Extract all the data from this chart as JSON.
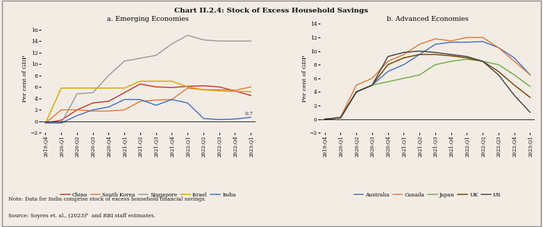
{
  "title": "Chart II.2.4: Stock of Excess Household Savings",
  "background_color": "#f2ece4",
  "note_line1": "Note: Data for India comprise stock of excess household financial savings.",
  "note_line2": "Source: Soyres et. al., (2023)ᵇ  and RBI staff estimates.",
  "panel_a": {
    "title": "a. Emerging Economies",
    "ylabel": "Per cent of GDP",
    "ylim": [
      -2,
      17
    ],
    "yticks": [
      -2,
      0,
      2,
      4,
      6,
      8,
      10,
      12,
      14,
      16
    ],
    "x_labels": [
      "2019:Q4",
      "2020:Q1",
      "2020:Q2",
      "2020:Q3",
      "2020:Q4",
      "2021:Q1",
      "2021:Q2",
      "2021:Q3",
      "2021:Q4",
      "2022:Q1",
      "2022:Q2",
      "2022:Q3",
      "2022:Q4",
      "2023:Q1"
    ],
    "annotation": "0.7",
    "series": {
      "China": {
        "color": "#c0392b",
        "values": [
          -0.3,
          0.2,
          2.0,
          3.2,
          3.5,
          5.0,
          6.5,
          6.0,
          5.9,
          6.1,
          6.2,
          6.0,
          5.3,
          4.5
        ]
      },
      "South Korea": {
        "color": "#e07b39",
        "values": [
          -0.3,
          2.0,
          2.0,
          1.8,
          1.8,
          2.0,
          3.5,
          3.7,
          3.8,
          5.8,
          5.5,
          5.5,
          5.4,
          6.0
        ]
      },
      "Singapore": {
        "color": "#999999",
        "values": [
          -0.3,
          -0.3,
          4.8,
          5.0,
          8.0,
          10.5,
          11.0,
          11.5,
          13.5,
          15.0,
          14.2,
          14.0,
          14.0,
          14.0
        ]
      },
      "Israel": {
        "color": "#d4a800",
        "values": [
          -0.3,
          5.8,
          5.8,
          5.8,
          5.8,
          5.8,
          7.0,
          7.0,
          7.0,
          6.0,
          5.5,
          5.3,
          5.2,
          5.2
        ]
      },
      "India": {
        "color": "#4472c4",
        "values": [
          -0.3,
          -0.3,
          1.0,
          2.0,
          2.5,
          3.8,
          3.8,
          2.8,
          3.8,
          3.2,
          0.5,
          0.3,
          0.4,
          0.7
        ]
      }
    },
    "legend_order": [
      "China",
      "South Korea",
      "Singapore",
      "Israel",
      "India"
    ]
  },
  "panel_b": {
    "title": "b. Advanced Economies",
    "ylabel": "Per cent of GDP",
    "ylim": [
      -2,
      14
    ],
    "yticks": [
      -2,
      0,
      2,
      4,
      6,
      8,
      10,
      12,
      14
    ],
    "x_labels": [
      "2019:Q4",
      "2020:Q1",
      "2020:Q2",
      "2020:Q3",
      "2020:Q4",
      "2021:Q1",
      "2021:Q2",
      "2021:Q3",
      "2021:Q4",
      "2022:Q1",
      "2022:Q2",
      "2022:Q3",
      "2022:Q4",
      "2023:Q1"
    ],
    "series": {
      "Australia": {
        "color": "#4472c4",
        "values": [
          0.0,
          0.2,
          4.0,
          5.0,
          7.0,
          8.0,
          9.5,
          11.0,
          11.3,
          11.3,
          11.4,
          10.5,
          9.0,
          6.5
        ]
      },
      "Canada": {
        "color": "#e07b39",
        "values": [
          0.0,
          0.3,
          5.0,
          6.0,
          8.5,
          9.5,
          11.0,
          11.8,
          11.5,
          12.0,
          12.0,
          10.5,
          8.5,
          6.5
        ]
      },
      "Japan": {
        "color": "#70ad47",
        "values": [
          0.0,
          0.2,
          4.0,
          5.0,
          5.5,
          6.0,
          6.5,
          8.0,
          8.5,
          8.8,
          8.5,
          8.0,
          6.5,
          4.8
        ]
      },
      "UK": {
        "color": "#7b3f00",
        "values": [
          0.0,
          0.2,
          4.0,
          5.0,
          8.0,
          9.0,
          9.5,
          9.5,
          9.3,
          9.0,
          8.5,
          7.0,
          5.0,
          3.2
        ]
      },
      "US": {
        "color": "#444444",
        "values": [
          0.0,
          0.2,
          4.0,
          5.0,
          9.2,
          9.8,
          10.0,
          9.8,
          9.5,
          9.2,
          8.5,
          6.5,
          3.5,
          1.0
        ]
      }
    },
    "legend_order": [
      "Australia",
      "Canada",
      "Japan",
      "UK",
      "US"
    ]
  }
}
